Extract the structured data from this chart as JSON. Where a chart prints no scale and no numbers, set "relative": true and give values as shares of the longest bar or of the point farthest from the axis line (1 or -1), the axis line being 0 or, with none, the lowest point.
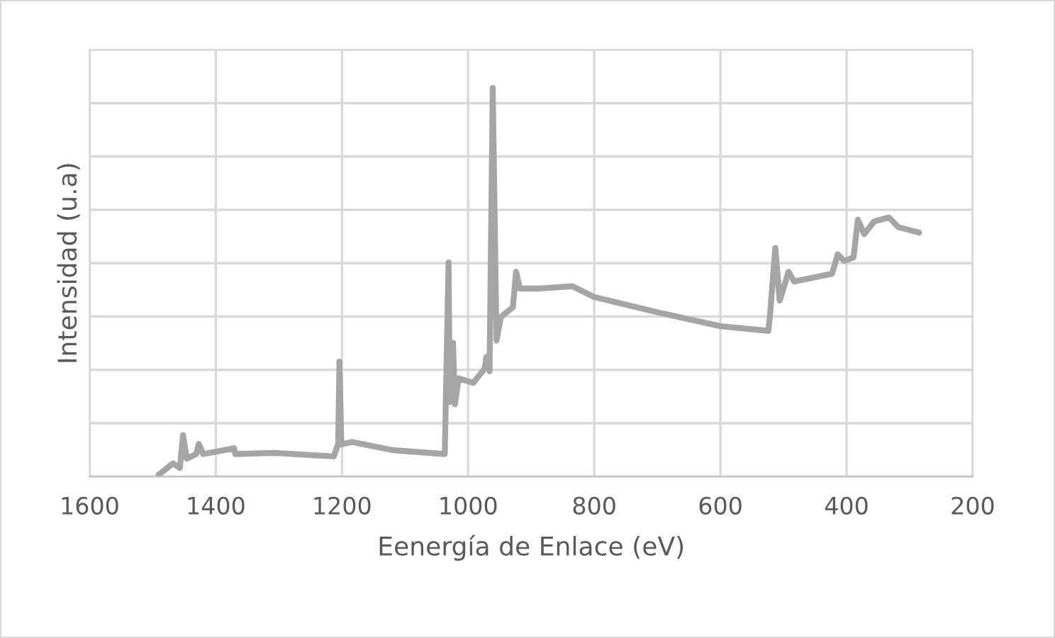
{
  "chart_data": {
    "type": "line",
    "relative": true,
    "xlabel": "Eenergía de Enlace (eV)",
    "ylabel": "Intensidad (u.a)",
    "xlim": [
      1600,
      200
    ],
    "xticks": [
      1600,
      1400,
      1200,
      1000,
      800,
      600,
      400,
      200
    ],
    "grid": true,
    "series": [
      {
        "color": "#a5a5a5",
        "x": [
          1491,
          1468,
          1457,
          1452,
          1446,
          1431,
          1427,
          1420,
          1371,
          1369,
          1307,
          1213,
          1206,
          1204,
          1201,
          1184,
          1120,
          1037,
          1031,
          1029,
          1024,
          1021,
          1015,
          992,
          974,
          971,
          966,
          961,
          955,
          948,
          929,
          924,
          918,
          888,
          835,
          800,
          700,
          600,
          524,
          521,
          513,
          506,
          492,
          483,
          423,
          414,
          404,
          389,
          382,
          372,
          356,
          333,
          318,
          285
        ],
        "values": [
          0.004,
          0.034,
          0.022,
          0.107,
          0.046,
          0.058,
          0.084,
          0.058,
          0.073,
          0.058,
          0.061,
          0.052,
          0.084,
          0.296,
          0.083,
          0.089,
          0.068,
          0.058,
          0.551,
          0.192,
          0.344,
          0.186,
          0.253,
          0.241,
          0.277,
          0.308,
          0.271,
          1.0,
          0.35,
          0.411,
          0.436,
          0.527,
          0.484,
          0.484,
          0.49,
          0.462,
          0.423,
          0.387,
          0.375,
          0.423,
          0.588,
          0.453,
          0.527,
          0.502,
          0.522,
          0.572,
          0.555,
          0.564,
          0.661,
          0.624,
          0.657,
          0.667,
          0.642,
          0.628
        ]
      }
    ]
  }
}
